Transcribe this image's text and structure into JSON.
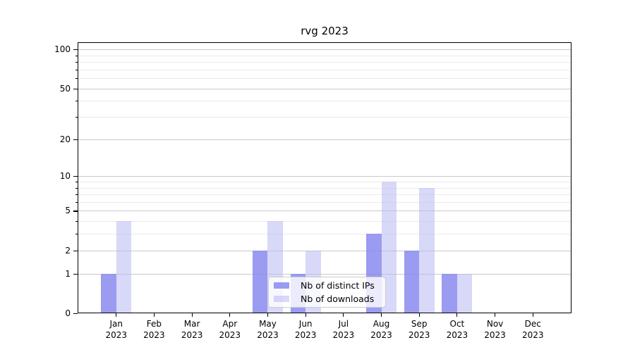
{
  "chart_data": {
    "type": "bar",
    "title": "rvg 2023",
    "categories": [
      "Jan",
      "Feb",
      "Mar",
      "Apr",
      "May",
      "Jun",
      "Jul",
      "Aug",
      "Sep",
      "Oct",
      "Nov",
      "Dec"
    ],
    "x_sublabel": "2023",
    "series": [
      {
        "name": "Nb of distinct IPs",
        "fill": "rgba(138,138,238,0.85)",
        "values": [
          1,
          0,
          0,
          0,
          2,
          1,
          0,
          3,
          2,
          1,
          0,
          0
        ]
      },
      {
        "name": "Nb of downloads",
        "fill": "rgba(184,184,242,0.55)",
        "values": [
          4,
          0,
          0,
          0,
          4,
          2,
          0,
          9,
          8,
          1,
          0,
          0
        ]
      }
    ],
    "y_axis": {
      "scale": "log1p",
      "major_ticks": [
        0,
        1,
        2,
        5,
        10,
        20,
        50,
        100
      ],
      "minor_ticks": [
        3,
        4,
        6,
        7,
        8,
        9,
        30,
        40,
        60,
        70,
        80,
        90
      ]
    },
    "legend_position": "lower center",
    "grid": true
  },
  "colors": {
    "major_grid": "#c9c9c9",
    "minor_grid": "#eaeaea",
    "spine": "#000000",
    "background": "#ffffff",
    "bar_distinct_ips": "#a3a3f0",
    "bar_downloads": "#d8d8f8"
  }
}
